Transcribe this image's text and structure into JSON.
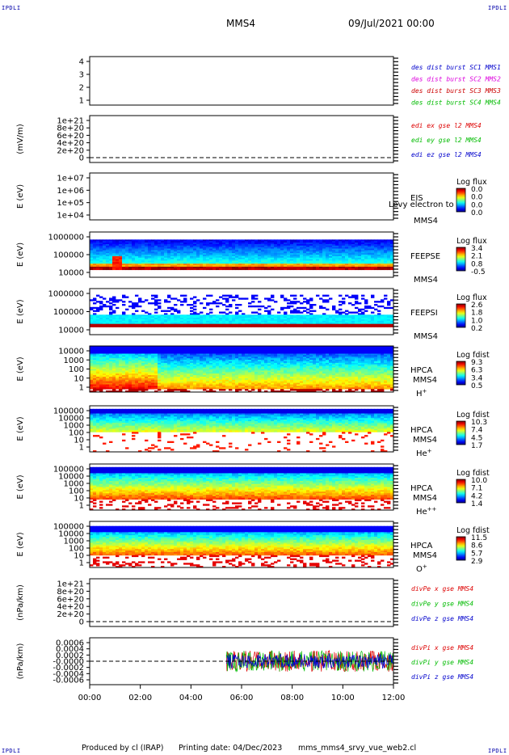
{
  "corner_label": "IPDLI",
  "header": {
    "spacecraft": "MMS4",
    "datetime": "09/Jul/2021 00:00"
  },
  "footer": {
    "producer": "Produced by cl (IRAP)",
    "printing": "Printing date: 04/Dec/2023",
    "filename": "mms_mms4_srvy_vue_web2.cl"
  },
  "colors": {
    "sc1": "#0000cc",
    "sc2": "#dd00dd",
    "sc3": "#cc0000",
    "sc4": "#00bb00",
    "x": "#dd0000",
    "y": "#00bb00",
    "z": "#0000cc"
  },
  "chart_data": [
    {
      "type": "line",
      "title": "",
      "ylabel": "",
      "yticks": [
        "4",
        "3",
        "2",
        "1"
      ],
      "ylim": [
        0.5,
        4.5
      ],
      "series": [
        {
          "name": "des dist burst SC1 MMS1",
          "color_key": "sc1"
        },
        {
          "name": "des dist burst SC2 MMS2",
          "color_key": "sc2"
        },
        {
          "name": "des dist burst SC3 MMS3",
          "color_key": "sc3"
        },
        {
          "name": "des dist burst SC4 MMS4",
          "color_key": "sc4"
        }
      ]
    },
    {
      "type": "line",
      "title": "",
      "ylabel": "(mV/m)",
      "yticks": [
        "1e+21",
        "8e+20",
        "6e+20",
        "4e+20",
        "2e+20",
        "0"
      ],
      "ylim": [
        0,
        1e+21
      ],
      "zero_line": true,
      "series": [
        {
          "name": "edi ex gse l2 MMS4",
          "color_key": "x"
        },
        {
          "name": "edi ey gse l2 MMS4",
          "color_key": "y"
        },
        {
          "name": "edi ez gse l2 MMS4",
          "color_key": "z"
        }
      ]
    },
    {
      "type": "heatmap",
      "ylabel": "E (eV)",
      "yticks": [
        "1e+07",
        "1e+06",
        "1e+05",
        "1e+04"
      ],
      "ylim": [
        10000.0,
        10000000.0
      ],
      "labels": [
        "EIS",
        "MMS4"
      ],
      "overlay_text": "Levy electron to",
      "colorbar": {
        "title": "Log flux",
        "ticks": [
          "0.0",
          "0.0",
          "0.0",
          "0.0"
        ]
      },
      "empty": true
    },
    {
      "type": "heatmap",
      "ylabel": "E (eV)",
      "yticks": [
        "1000000",
        "100000",
        "10000"
      ],
      "ylim": [
        10000.0,
        1000000.0
      ],
      "labels": [
        "FEEPSE",
        "MMS4"
      ],
      "colorbar": {
        "title": "Log flux",
        "ticks": [
          "3.4",
          "2.1",
          "0.8",
          "-0.5"
        ]
      }
    },
    {
      "type": "heatmap",
      "ylabel": "E (eV)",
      "yticks": [
        "1000000",
        "100000",
        "10000"
      ],
      "ylim": [
        10000.0,
        1000000.0
      ],
      "labels": [
        "FEEPSI",
        "MMS4"
      ],
      "colorbar": {
        "title": "Log flux",
        "ticks": [
          "2.6",
          "1.8",
          "1.0",
          "0.2"
        ]
      }
    },
    {
      "type": "heatmap",
      "ylabel": "E (eV)",
      "yticks": [
        "10000",
        "1000",
        "100",
        "10",
        "1"
      ],
      "ylim": [
        1,
        100000.0
      ],
      "labels": [
        "HPCA",
        "MMS4"
      ],
      "species": "H",
      "species_sup": "+",
      "colorbar": {
        "title": "Log fdist",
        "ticks": [
          "9.3",
          "6.3",
          "3.4",
          "0.5"
        ]
      }
    },
    {
      "type": "heatmap",
      "ylabel": "E (eV)",
      "yticks": [
        "100000",
        "10000",
        "1000",
        "100",
        "10",
        "1"
      ],
      "ylim": [
        1,
        100000.0
      ],
      "labels": [
        "HPCA",
        "MMS4"
      ],
      "species": "He",
      "species_sup": "+",
      "colorbar": {
        "title": "Log fdist",
        "ticks": [
          "10.3",
          "7.4",
          "4.5",
          "1.7"
        ]
      }
    },
    {
      "type": "heatmap",
      "ylabel": "E (eV)",
      "yticks": [
        "100000",
        "10000",
        "1000",
        "100",
        "10",
        "1"
      ],
      "ylim": [
        1,
        100000.0
      ],
      "labels": [
        "HPCA",
        "MMS4"
      ],
      "species": "He",
      "species_sup": "++",
      "colorbar": {
        "title": "Log fdist",
        "ticks": [
          "10.0",
          "7.1",
          "4.2",
          "1.4"
        ]
      }
    },
    {
      "type": "heatmap",
      "ylabel": "E (eV)",
      "yticks": [
        "100000",
        "10000",
        "1000",
        "100",
        "10",
        "1"
      ],
      "ylim": [
        1,
        100000.0
      ],
      "labels": [
        "HPCA",
        "MMS4"
      ],
      "species": "O",
      "species_sup": "+",
      "colorbar": {
        "title": "Log fdist",
        "ticks": [
          "11.5",
          "8.6",
          "5.7",
          "2.9"
        ]
      }
    },
    {
      "type": "line",
      "ylabel": "(nPa/km)",
      "yticks": [
        "1e+21",
        "8e+20",
        "6e+20",
        "4e+20",
        "2e+20",
        "0"
      ],
      "ylim": [
        0,
        1e+21
      ],
      "zero_line": true,
      "series": [
        {
          "name": "divPe x gse MMS4",
          "color_key": "x"
        },
        {
          "name": "divPe y gse MMS4",
          "color_key": "y"
        },
        {
          "name": "divPe z gse MMS4",
          "color_key": "z"
        }
      ]
    },
    {
      "type": "line",
      "ylabel": "(nPa/km)",
      "yticks": [
        "0.0006",
        "0.0004",
        "0.0002",
        "-0.0000",
        "-0.0002",
        "-0.0004",
        "-0.0006"
      ],
      "ylim": [
        -0.0006,
        0.0006
      ],
      "zero_line": true,
      "series": [
        {
          "name": "divPi x gse MMS4",
          "color_key": "x"
        },
        {
          "name": "divPi y gse MMS4",
          "color_key": "y"
        },
        {
          "name": "divPi z gse MMS4",
          "color_key": "z"
        }
      ]
    }
  ],
  "x_axis": {
    "ticks": [
      "00:00",
      "02:00",
      "04:00",
      "06:00",
      "08:00",
      "10:00",
      "12:00"
    ],
    "xlim_hours": [
      0,
      12
    ]
  }
}
